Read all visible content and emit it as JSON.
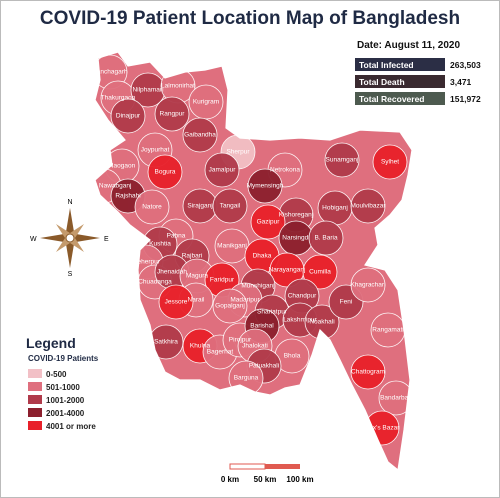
{
  "title": "COVID-19 Patient Location Map of Bangladesh",
  "date": "Date: August 11, 2020",
  "stats": [
    {
      "label": "Total Infected",
      "value": "263,503",
      "color": "#2b2e45"
    },
    {
      "label": "Total Death",
      "value": "3,471",
      "color": "#3a2a30"
    },
    {
      "label": "Total Recovered",
      "value": "151,972",
      "color": "#4d5a4f"
    }
  ],
  "legend": {
    "title": "Legend",
    "subtitle": "COVID-19 Patients",
    "items": [
      {
        "label": "0-500",
        "color": "#f2c0c6"
      },
      {
        "label": "501-1000",
        "color": "#df6f7e"
      },
      {
        "label": "1001-2000",
        "color": "#b03a4a"
      },
      {
        "label": "2001-4000",
        "color": "#8c1f2d"
      },
      {
        "label": "4001 or more",
        "color": "#e8202a"
      }
    ]
  },
  "compass": {
    "n": "N",
    "s": "S",
    "e": "E",
    "w": "W"
  },
  "scale": [
    "0 km",
    "50 km",
    "100 km"
  ],
  "districts": [
    {
      "name": "Panchagarh",
      "color": "#df6f7e"
    },
    {
      "name": "Thakurgaon",
      "color": "#df6f7e"
    },
    {
      "name": "Nilphamari",
      "color": "#b03a4a"
    },
    {
      "name": "Lalmonirhat",
      "color": "#df6f7e"
    },
    {
      "name": "Kurigram",
      "color": "#df6f7e"
    },
    {
      "name": "Dinajpur",
      "color": "#b03a4a"
    },
    {
      "name": "Rangpur",
      "color": "#b03a4a"
    },
    {
      "name": "Gaibandha",
      "color": "#b03a4a"
    },
    {
      "name": "Joypurhat",
      "color": "#df6f7e"
    },
    {
      "name": "Sherpur",
      "color": "#f2c0c6"
    },
    {
      "name": "Naogaon",
      "color": "#df6f7e"
    },
    {
      "name": "Bogura",
      "color": "#e8202a"
    },
    {
      "name": "Jamalpur",
      "color": "#b03a4a"
    },
    {
      "name": "Netrokona",
      "color": "#df6f7e"
    },
    {
      "name": "Sunamganj",
      "color": "#b03a4a"
    },
    {
      "name": "Sylhet",
      "color": "#e8202a"
    },
    {
      "name": "Chapai Nawabganj",
      "color": "#df6f7e"
    },
    {
      "name": "Rajshahi",
      "color": "#8c1f2d"
    },
    {
      "name": "Natore",
      "color": "#df6f7e"
    },
    {
      "name": "Sirajganj",
      "color": "#b03a4a"
    },
    {
      "name": "Tangail",
      "color": "#b03a4a"
    },
    {
      "name": "Mymensingh",
      "color": "#8c1f2d"
    },
    {
      "name": "Kishoreganj",
      "color": "#b03a4a"
    },
    {
      "name": "Hobiganj",
      "color": "#b03a4a"
    },
    {
      "name": "Moulvibazar",
      "color": "#b03a4a"
    },
    {
      "name": "Pabna",
      "color": "#df6f7e"
    },
    {
      "name": "Gazipur",
      "color": "#e8202a"
    },
    {
      "name": "Narsingdi",
      "color": "#8c1f2d"
    },
    {
      "name": "Kushtia",
      "color": "#b03a4a"
    },
    {
      "name": "Manikganj",
      "color": "#df6f7e"
    },
    {
      "name": "Dhaka",
      "color": "#e8202a"
    },
    {
      "name": "B. Baria",
      "color": "#b03a4a"
    },
    {
      "name": "Meherpur",
      "color": "#df6f7e"
    },
    {
      "name": "Rajbari",
      "color": "#b03a4a"
    },
    {
      "name": "Chuadanga",
      "color": "#df6f7e"
    },
    {
      "name": "Jhenaidah",
      "color": "#b03a4a"
    },
    {
      "name": "Magura",
      "color": "#df6f7e"
    },
    {
      "name": "Faridpur",
      "color": "#e8202a"
    },
    {
      "name": "Narayanganj",
      "color": "#e8202a"
    },
    {
      "name": "Munshiganj",
      "color": "#b03a4a"
    },
    {
      "name": "Cumilla",
      "color": "#e8202a"
    },
    {
      "name": "Chandpur",
      "color": "#b03a4a"
    },
    {
      "name": "Madaripur",
      "color": "#df6f7e"
    },
    {
      "name": "Shariatpur",
      "color": "#b03a4a"
    },
    {
      "name": "Narail",
      "color": "#df6f7e"
    },
    {
      "name": "Jessore",
      "color": "#e8202a"
    },
    {
      "name": "Gopalganj",
      "color": "#df6f7e"
    },
    {
      "name": "Lakshmipur",
      "color": "#b03a4a"
    },
    {
      "name": "Noakhali",
      "color": "#b03a4a"
    },
    {
      "name": "Feni",
      "color": "#b03a4a"
    },
    {
      "name": "Khagrachari",
      "color": "#df6f7e"
    },
    {
      "name": "Rangamati",
      "color": "#df6f7e"
    },
    {
      "name": "Satkhira",
      "color": "#b03a4a"
    },
    {
      "name": "Khulna",
      "color": "#e8202a"
    },
    {
      "name": "Bagerhat",
      "color": "#df6f7e"
    },
    {
      "name": "Pirojpur",
      "color": "#df6f7e"
    },
    {
      "name": "Barishal",
      "color": "#8c1f2d"
    },
    {
      "name": "Jhalokati",
      "color": "#df6f7e"
    },
    {
      "name": "Bhola",
      "color": "#df6f7e"
    },
    {
      "name": "Patuakhali",
      "color": "#b03a4a"
    },
    {
      "name": "Barguna",
      "color": "#df6f7e"
    },
    {
      "name": "Chattogram",
      "color": "#e8202a"
    },
    {
      "name": "Bandarban",
      "color": "#df6f7e"
    },
    {
      "name": "Cox's Bazar",
      "color": "#e8202a"
    }
  ]
}
